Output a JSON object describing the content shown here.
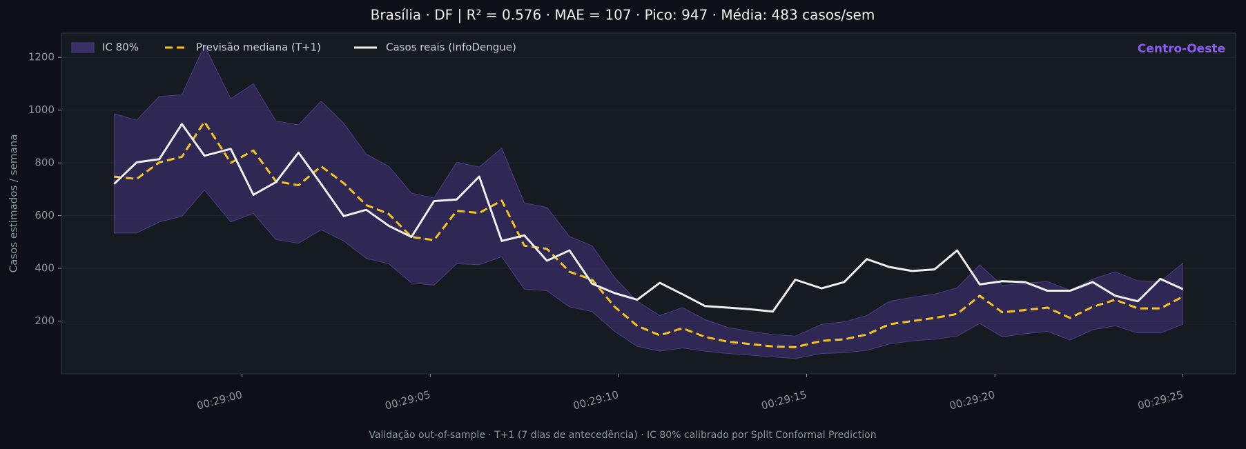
{
  "chart_data": {
    "type": "line",
    "title": "Brasília · DF   |   R² = 0.576  ·  MAE = 107  ·  Pico: 947  ·  Média: 483 casos/sem",
    "annotation": "Centro-Oeste",
    "y_label": "Casos estimados / semana",
    "footer": "Validação out-of-sample · T+1 (7 dias de antecedência) · IC 80% calibrado por Split Conformal Prediction",
    "x": [
      1736.6,
      1737.2,
      1737.8,
      1738.4,
      1739.0,
      1739.7,
      1740.3,
      1740.9,
      1741.5,
      1742.1,
      1742.7,
      1743.3,
      1743.9,
      1744.5,
      1745.1,
      1745.7,
      1746.3,
      1746.9,
      1747.5,
      1748.1,
      1748.7,
      1749.3,
      1749.9,
      1750.5,
      1751.1,
      1751.7,
      1752.3,
      1752.9,
      1753.5,
      1754.1,
      1754.7,
      1755.4,
      1756.0,
      1756.6,
      1757.2,
      1757.8,
      1758.4,
      1759.0,
      1759.6,
      1760.2,
      1760.8,
      1761.4,
      1762.0,
      1762.6,
      1763.2,
      1763.8,
      1764.4,
      1765.0
    ],
    "band": {
      "name": "IC 80%",
      "color": "#3a2e66",
      "upper": [
        986,
        962,
        1052,
        1058,
        1245,
        1043,
        1100,
        959,
        944,
        1034,
        950,
        833,
        787,
        685,
        667,
        802,
        784,
        856,
        648,
        631,
        521,
        485,
        365,
        275,
        221,
        251,
        206,
        176,
        161,
        149,
        143,
        188,
        197,
        221,
        275,
        290,
        302,
        326,
        413,
        335,
        344,
        350,
        317,
        359,
        387,
        353,
        350,
        420
      ],
      "lower": [
        534,
        534,
        576,
        597,
        697,
        576,
        609,
        509,
        495,
        546,
        504,
        438,
        417,
        345,
        336,
        417,
        414,
        444,
        321,
        315,
        254,
        236,
        161,
        104,
        86,
        98,
        86,
        77,
        71,
        64,
        58,
        77,
        80,
        89,
        113,
        125,
        131,
        143,
        191,
        140,
        152,
        161,
        128,
        167,
        182,
        155,
        155,
        188
      ]
    },
    "series": [
      {
        "name": "Previsão mediana (T+1)",
        "color": "#f5c518",
        "dashed": true,
        "values": [
          748,
          739,
          802,
          823,
          956,
          800,
          847,
          730,
          715,
          787,
          723,
          640,
          606,
          519,
          507,
          618,
          610,
          657,
          486,
          474,
          387,
          357,
          254,
          182,
          146,
          173,
          140,
          122,
          113,
          104,
          101,
          125,
          131,
          149,
          188,
          200,
          212,
          227,
          296,
          233,
          242,
          251,
          212,
          254,
          281,
          248,
          248,
          293
        ]
      },
      {
        "name": "Casos reais (InfoDengue)",
        "color": "#f0f0f0",
        "dashed": false,
        "values": [
          720,
          802,
          814,
          947,
          827,
          853,
          679,
          727,
          839,
          720,
          598,
          622,
          561,
          519,
          655,
          661,
          748,
          504,
          525,
          429,
          468,
          342,
          306,
          281,
          345,
          302,
          257,
          251,
          245,
          236,
          357,
          324,
          348,
          435,
          405,
          390,
          396,
          468,
          339,
          351,
          348,
          315,
          315,
          348,
          296,
          275,
          360,
          321
        ]
      }
    ],
    "xlim": [
      1735.2,
      1766.4
    ],
    "xticks": [
      {
        "value": 1740,
        "label": "00:29:00"
      },
      {
        "value": 1745,
        "label": "00:29:05"
      },
      {
        "value": 1750,
        "label": "00:29:10"
      },
      {
        "value": 1755,
        "label": "00:29:15"
      },
      {
        "value": 1760,
        "label": "00:29:20"
      },
      {
        "value": 1765,
        "label": "00:29:25"
      }
    ],
    "ylim": [
      0,
      1292
    ],
    "yticks": [
      200,
      400,
      600,
      800,
      1000,
      1200
    ],
    "grid": true,
    "legend": "upper left"
  }
}
